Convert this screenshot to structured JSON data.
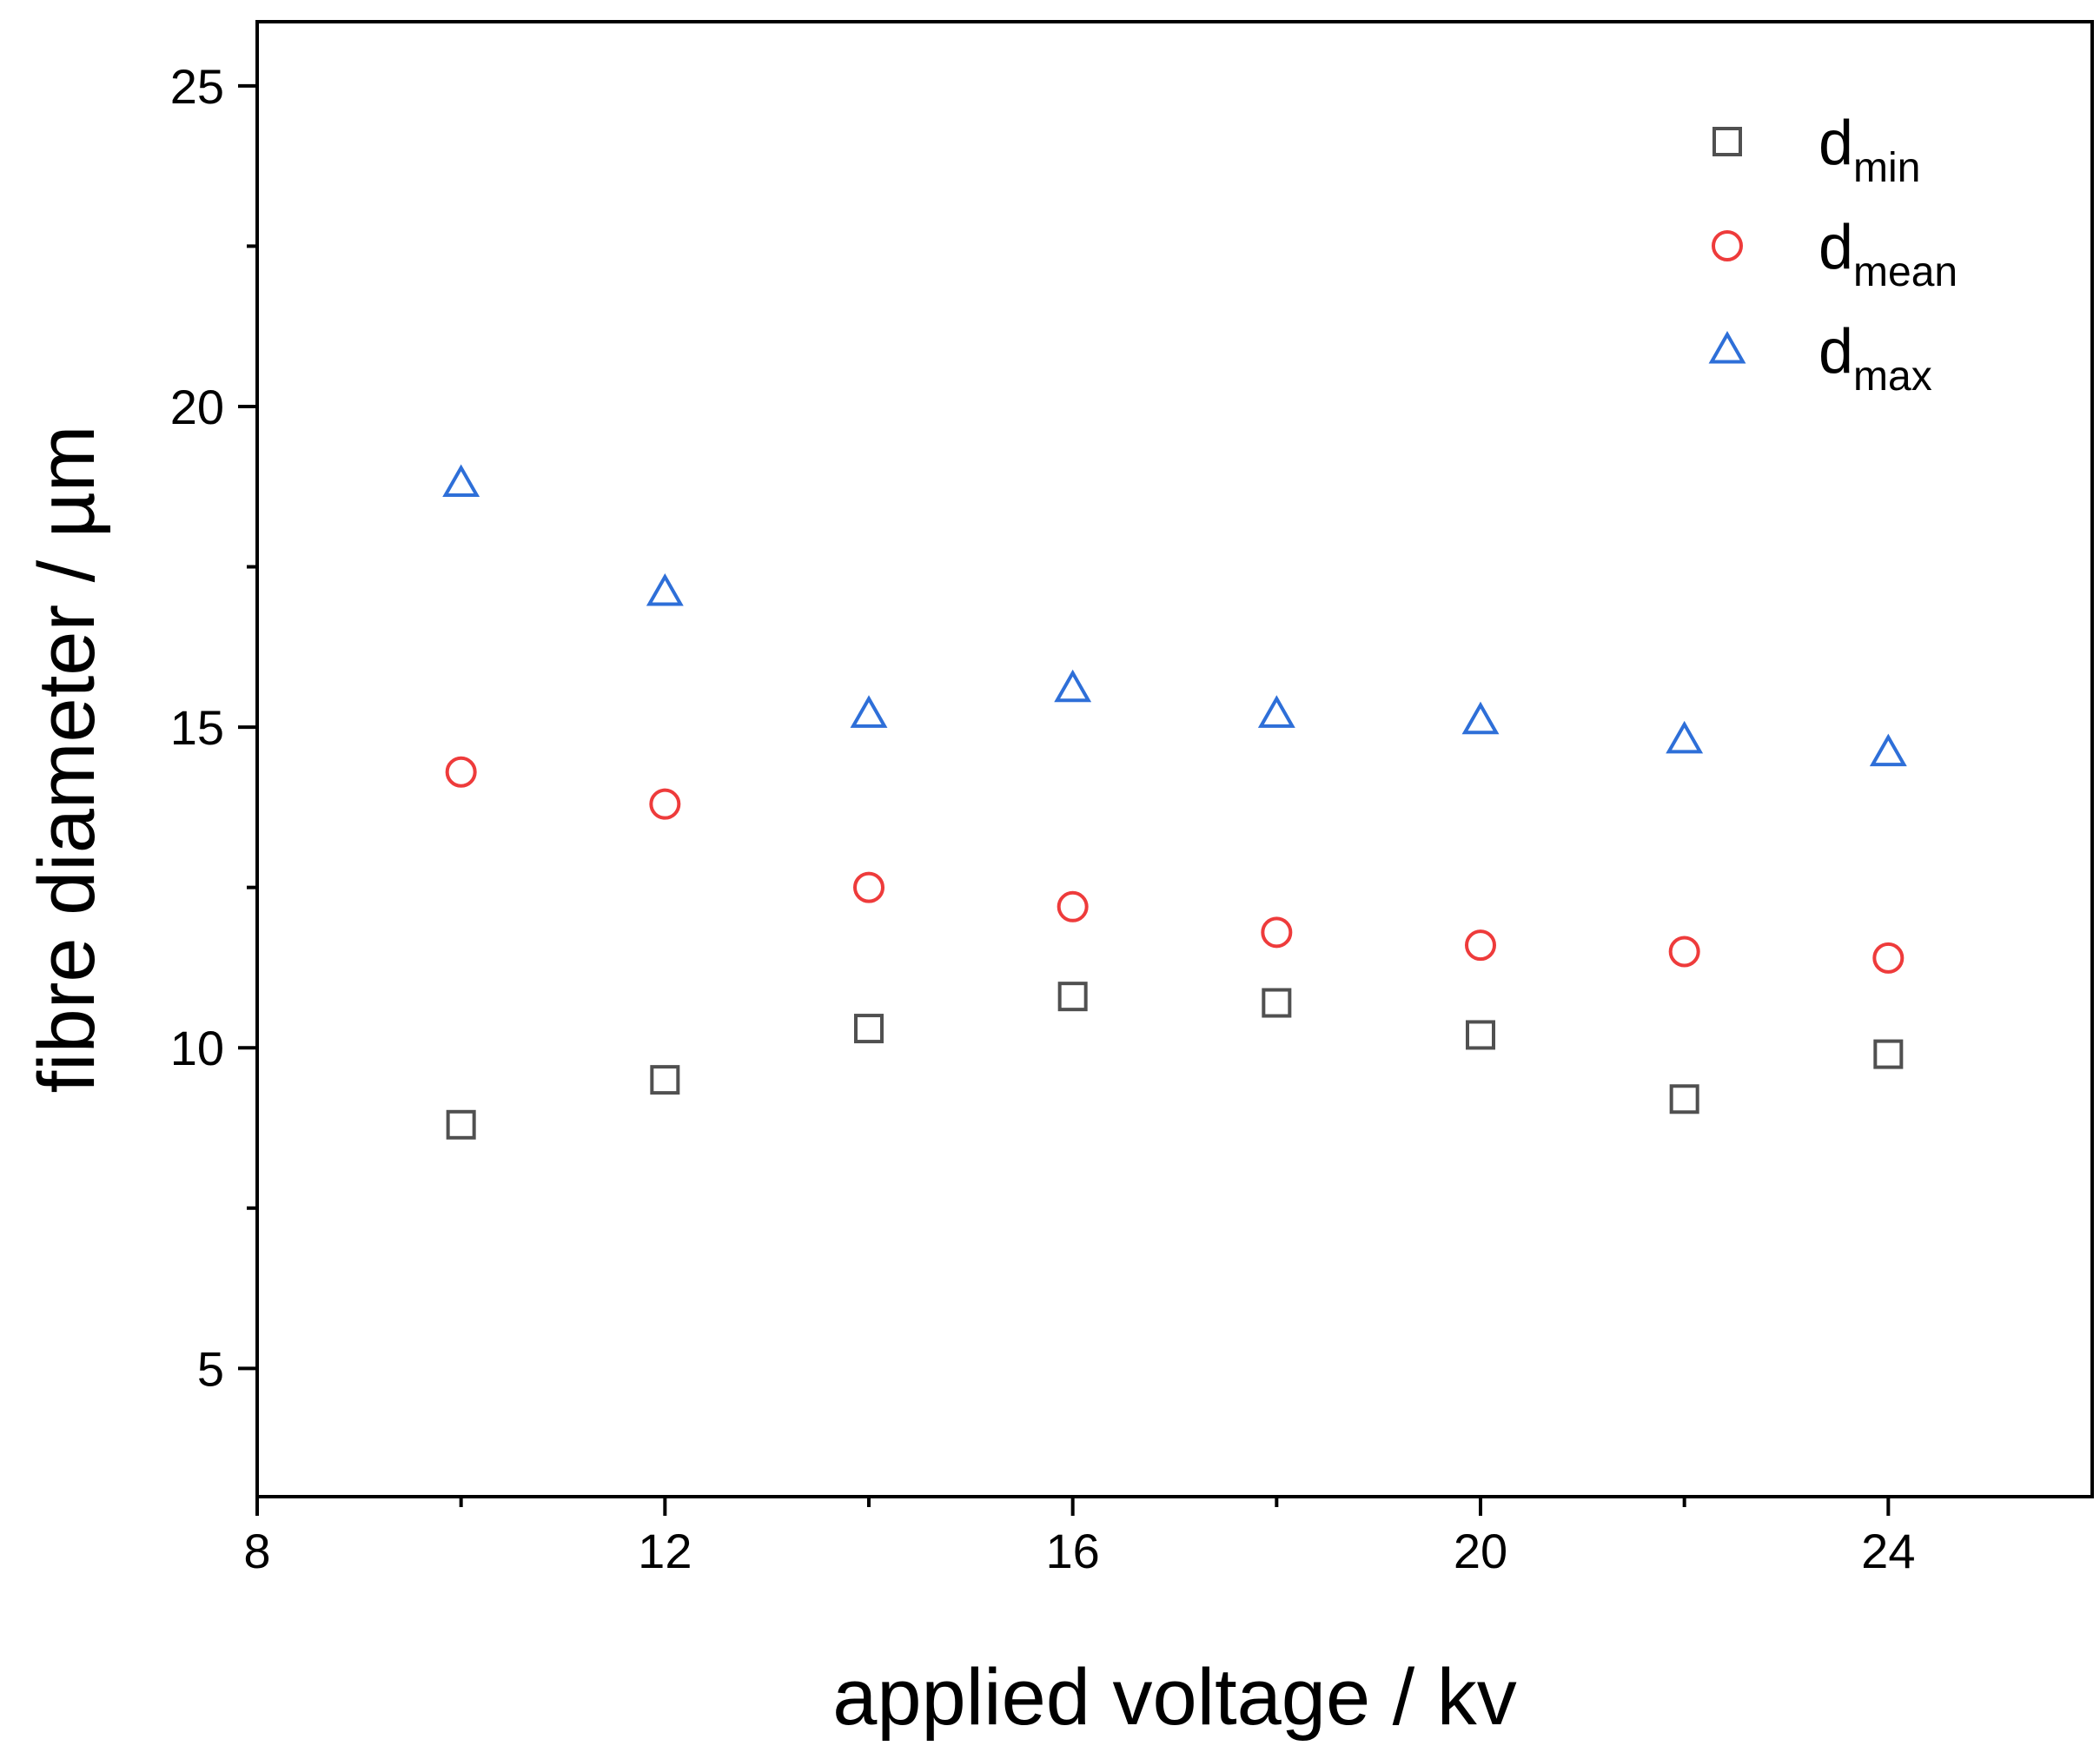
{
  "chart_data": {
    "type": "scatter",
    "title": "",
    "xlabel": "applied voltage / kv",
    "ylabel": "fibre diameter / µm",
    "xlim": [
      8,
      26
    ],
    "ylim": [
      3,
      26
    ],
    "xticks": [
      8,
      12,
      16,
      20,
      24
    ],
    "yticks": [
      5,
      10,
      15,
      20,
      25
    ],
    "x": [
      10,
      12,
      14,
      16,
      18,
      20,
      22,
      24
    ],
    "grid": false,
    "legend_position": "top-right",
    "series": [
      {
        "name": "d_min",
        "legend_base": "d",
        "legend_sub": "min",
        "marker": "square",
        "color": "#505050",
        "values": [
          8.8,
          9.5,
          10.3,
          10.8,
          10.7,
          10.2,
          9.2,
          9.9
        ]
      },
      {
        "name": "d_mean",
        "legend_base": "d",
        "legend_sub": "mean",
        "marker": "circle",
        "color": "#ee3b3b",
        "values": [
          14.3,
          13.8,
          12.5,
          12.2,
          11.8,
          11.6,
          11.5,
          11.4
        ]
      },
      {
        "name": "d_max",
        "legend_base": "d",
        "legend_sub": "max",
        "marker": "triangle",
        "color": "#2e6fd8",
        "values": [
          18.8,
          17.1,
          15.2,
          15.6,
          15.2,
          15.1,
          14.8,
          14.6
        ]
      }
    ]
  }
}
